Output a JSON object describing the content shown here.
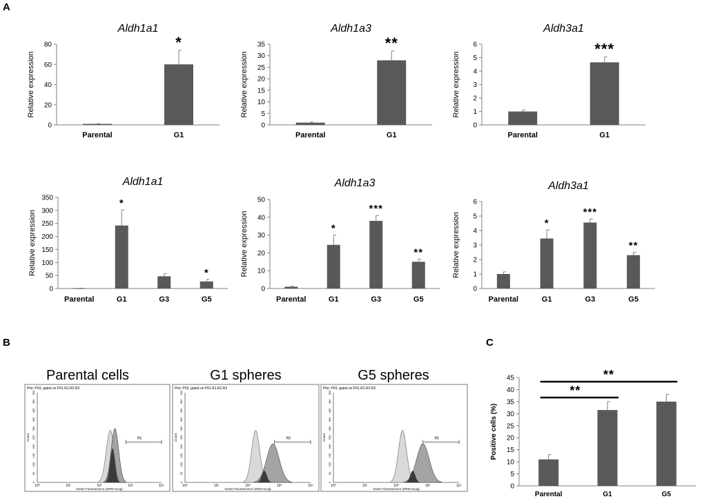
{
  "panels": {
    "A": "A",
    "B": "B",
    "C": "C"
  },
  "colors": {
    "bar": "#595959",
    "axis": "#7f7f7f",
    "text": "#000000",
    "hist_light": "#d9d9d9",
    "hist_mid": "#9a9a9a",
    "hist_dark": "#3a3a3a"
  },
  "chart_data": [
    {
      "id": "a1",
      "type": "bar",
      "title": "Aldh1a1",
      "ylabel": "Relative expression",
      "categories": [
        "Parental",
        "G1"
      ],
      "values": [
        1,
        60
      ],
      "errors": [
        0.3,
        14
      ],
      "significance": [
        "",
        "*"
      ],
      "ylim": [
        0,
        80
      ],
      "yticks": [
        0,
        20,
        40,
        60,
        80
      ]
    },
    {
      "id": "a2",
      "type": "bar",
      "title": "Aldh1a3",
      "ylabel": "Relative expression",
      "categories": [
        "Parental",
        "G1"
      ],
      "values": [
        1,
        28
      ],
      "errors": [
        0.3,
        4
      ],
      "significance": [
        "",
        "**"
      ],
      "ylim": [
        0,
        35
      ],
      "yticks": [
        0,
        5,
        10,
        15,
        20,
        25,
        30,
        35
      ]
    },
    {
      "id": "a3",
      "type": "bar",
      "title": "Aldh3a1",
      "ylabel": "Relative expression",
      "categories": [
        "Parental",
        "G1"
      ],
      "values": [
        1,
        4.65
      ],
      "errors": [
        0.12,
        0.4
      ],
      "significance": [
        "",
        "***"
      ],
      "ylim": [
        0,
        6
      ],
      "yticks": [
        0,
        1,
        2,
        3,
        4,
        5,
        6
      ]
    },
    {
      "id": "a4",
      "type": "bar",
      "title": "Aldh1a1",
      "ylabel": "Relative expression",
      "categories": [
        "Parental",
        "G1",
        "G3",
        "G5"
      ],
      "values": [
        1,
        242,
        47,
        27
      ],
      "errors": [
        0.5,
        60,
        10,
        8
      ],
      "significance": [
        "",
        "*",
        "",
        "*"
      ],
      "ylim": [
        0,
        350
      ],
      "yticks": [
        0,
        50,
        100,
        150,
        200,
        250,
        300,
        350
      ]
    },
    {
      "id": "a5",
      "type": "bar",
      "title": "Aldh1a3",
      "ylabel": "Relative expression",
      "categories": [
        "Parental",
        "G1",
        "G3",
        "G5"
      ],
      "values": [
        1,
        24.5,
        38,
        15
      ],
      "errors": [
        0.3,
        5.5,
        3,
        1.5
      ],
      "significance": [
        "",
        "*",
        "***",
        "**"
      ],
      "ylim": [
        0,
        50
      ],
      "yticks": [
        0,
        10,
        20,
        30,
        40,
        50
      ]
    },
    {
      "id": "a6",
      "type": "bar",
      "title": "Aldh3a1",
      "ylabel": "Relative expression",
      "categories": [
        "Parental",
        "G1",
        "G3",
        "G5"
      ],
      "values": [
        1,
        3.45,
        4.55,
        2.3
      ],
      "errors": [
        0.15,
        0.6,
        0.25,
        0.2
      ],
      "significance": [
        "",
        "*",
        "***",
        "**"
      ],
      "ylim": [
        0,
        6
      ],
      "yticks": [
        0,
        1,
        2,
        3,
        4,
        5,
        6
      ]
    },
    {
      "id": "c",
      "type": "bar",
      "title": "",
      "ylabel": "Positive cells (%)",
      "categories": [
        "Parental",
        "G1",
        "G5"
      ],
      "values": [
        11,
        31.5,
        35
      ],
      "errors": [
        2,
        3.5,
        3
      ],
      "significance": [
        "",
        "",
        ""
      ],
      "ylim": [
        0,
        45
      ],
      "yticks": [
        0,
        5,
        10,
        15,
        20,
        25,
        30,
        35,
        40,
        45
      ],
      "brackets": [
        {
          "from": "Parental",
          "to": "G1",
          "label": "**"
        },
        {
          "from": "Parental",
          "to": "G5",
          "label": "**"
        }
      ]
    }
  ],
  "flow_panels": [
    {
      "id": "b1",
      "title": "Parental cells",
      "header": "Plot: P03, gated on P01.R1.R2.R3",
      "xlabel": "Green Fluorescence (GRN-HLog)",
      "ylabel": "Count",
      "gate": "R5",
      "yticks": [
        "0",
        "50",
        "100",
        "150",
        "200",
        "250",
        "300",
        "350",
        "400",
        "450",
        "500"
      ],
      "xticks": [
        "10⁰",
        "10¹",
        "10²",
        "10³",
        "10⁴"
      ],
      "peaks": {
        "control": 2.35,
        "stained": 2.5
      }
    },
    {
      "id": "b2",
      "title": "G1 spheres",
      "header": "Plot: P03, gated on P01.R1.R2.R3",
      "xlabel": "Green Fluorescence (GRN-HLog)",
      "ylabel": "Count",
      "gate": "R5",
      "yticks": [
        "0",
        "50",
        "100",
        "150",
        "200",
        "250",
        "300",
        "350",
        "400",
        "450",
        "500"
      ],
      "xticks": [
        "10⁰",
        "10¹",
        "10²",
        "10³",
        "10⁴"
      ],
      "peaks": {
        "control": 2.25,
        "stained": 2.8
      }
    },
    {
      "id": "b3",
      "title": "G5 spheres",
      "header": "Plot: P03, gated on P01.R1.R2.R3",
      "xlabel": "Green Fluorescence (GRN-HLog)",
      "ylabel": "Count",
      "gate": "R5",
      "yticks": [
        "0",
        "50",
        "100",
        "150",
        "200",
        "250",
        "300",
        "350",
        "400",
        "450",
        "500"
      ],
      "xticks": [
        "10⁰",
        "10¹",
        "10²",
        "10³",
        "10⁴"
      ],
      "peaks": {
        "control": 2.2,
        "stained": 2.85
      }
    }
  ]
}
